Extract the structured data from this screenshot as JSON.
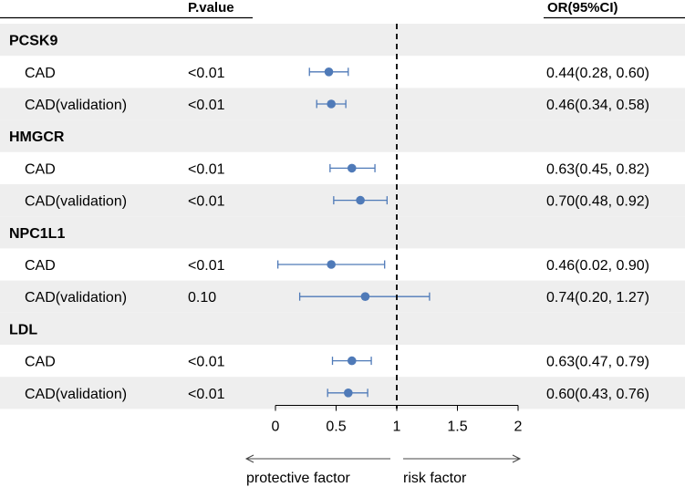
{
  "chart_data": {
    "type": "forest",
    "headers": {
      "p_value": "P.value",
      "or_ci": "OR(95%CI)"
    },
    "reference_line": 1,
    "xlim": [
      0,
      2
    ],
    "x_ticks": [
      0,
      0.5,
      1,
      1.5,
      2
    ],
    "x_tick_labels": [
      "0",
      "0.5",
      "1",
      "1.5",
      "2"
    ],
    "direction_labels": {
      "left": "protective factor",
      "right": "risk factor"
    },
    "groups": [
      {
        "name": "PCSK9",
        "rows": [
          {
            "label": "CAD",
            "p_value": "<0.01",
            "or": 0.44,
            "low": 0.28,
            "high": 0.6,
            "text": "0.44(0.28, 0.60)"
          },
          {
            "label": "CAD(validation)",
            "p_value": "<0.01",
            "or": 0.46,
            "low": 0.34,
            "high": 0.58,
            "text": "0.46(0.34, 0.58)"
          }
        ]
      },
      {
        "name": "HMGCR",
        "rows": [
          {
            "label": "CAD",
            "p_value": "<0.01",
            "or": 0.63,
            "low": 0.45,
            "high": 0.82,
            "text": "0.63(0.45, 0.82)"
          },
          {
            "label": "CAD(validation)",
            "p_value": "<0.01",
            "or": 0.7,
            "low": 0.48,
            "high": 0.92,
            "text": "0.70(0.48, 0.92)"
          }
        ]
      },
      {
        "name": "NPC1L1",
        "rows": [
          {
            "label": "CAD",
            "p_value": "<0.01",
            "or": 0.46,
            "low": 0.02,
            "high": 0.9,
            "text": "0.46(0.02, 0.90)"
          },
          {
            "label": "CAD(validation)",
            "p_value": "0.10",
            "or": 0.74,
            "low": 0.2,
            "high": 1.27,
            "text": "0.74(0.20, 1.27)"
          }
        ]
      },
      {
        "name": "LDL",
        "rows": [
          {
            "label": "CAD",
            "p_value": "<0.01",
            "or": 0.63,
            "low": 0.47,
            "high": 0.79,
            "text": "0.63(0.47, 0.79)"
          },
          {
            "label": "CAD(validation)",
            "p_value": "<0.01",
            "or": 0.6,
            "low": 0.43,
            "high": 0.76,
            "text": "0.60(0.43, 0.76)"
          }
        ]
      }
    ],
    "colors": {
      "marker": "#4f7ab8",
      "stripe": "#eeeeee"
    }
  }
}
